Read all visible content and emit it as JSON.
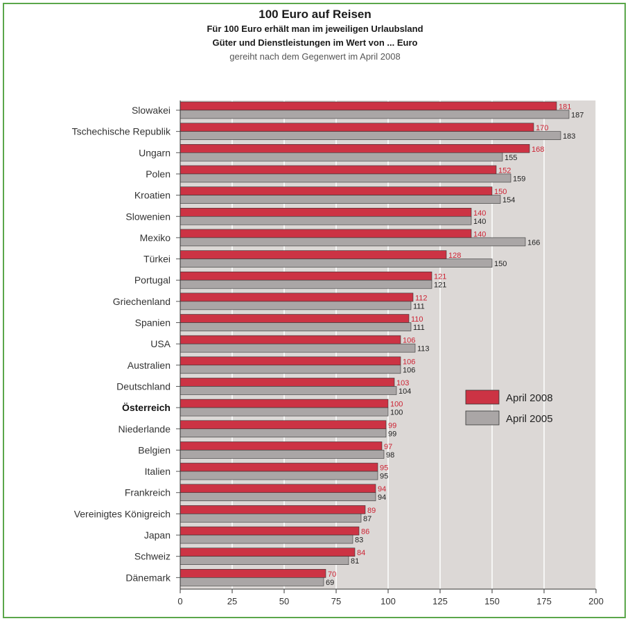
{
  "chart_data": {
    "type": "bar",
    "orientation": "horizontal",
    "title": "100 Euro auf Reisen",
    "subtitle_lines": [
      "Für 100 Euro erhält man im jeweiligen Urlaubsland",
      "Güter und Dienstleistungen im Wert von ... Euro",
      "gereiht nach dem Gegenwert im April 2008"
    ],
    "categories": [
      "Slowakei",
      "Tschechische Republik",
      "Ungarn",
      "Polen",
      "Kroatien",
      "Slowenien",
      "Mexiko",
      "Türkei",
      "Portugal",
      "Griechenland",
      "Spanien",
      "USA",
      "Australien",
      "Deutschland",
      "Österreich",
      "Niederlande",
      "Belgien",
      "Italien",
      "Frankreich",
      "Vereinigtes Königreich",
      "Japan",
      "Schweiz",
      "Dänemark"
    ],
    "highlight_category": "Österreich",
    "series": [
      {
        "name": "April 2008",
        "color": "#cc3344",
        "values": [
          181,
          170,
          168,
          152,
          150,
          140,
          140,
          128,
          121,
          112,
          110,
          106,
          106,
          103,
          100,
          99,
          97,
          95,
          94,
          89,
          86,
          84,
          70
        ]
      },
      {
        "name": "April 2005",
        "color": "#aaa6a6",
        "values": [
          187,
          183,
          155,
          159,
          154,
          140,
          166,
          150,
          121,
          111,
          111,
          113,
          106,
          104,
          100,
          99,
          98,
          95,
          94,
          87,
          83,
          81,
          69
        ]
      }
    ],
    "xlim": [
      0,
      200
    ],
    "xticks": [
      0,
      25,
      50,
      75,
      100,
      125,
      150,
      175,
      200
    ],
    "grid": true,
    "legend": "right-middle"
  }
}
